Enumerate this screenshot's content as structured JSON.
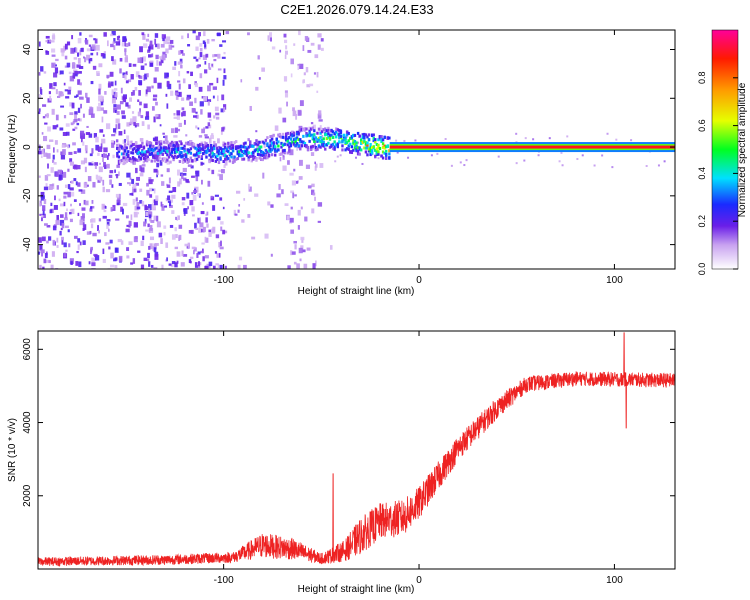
{
  "title": "C2E1.2026.079.14.24.E33",
  "colors": {
    "snr_line": "#ee2222",
    "axis": "#000000",
    "background": "#ffffff"
  },
  "chart_data": [
    {
      "type": "heatmap",
      "name": "spectrogram",
      "xlabel": "Height of straight line (km)",
      "ylabel": "Frequency (Hz)",
      "xlim": [
        -195,
        131
      ],
      "ylim": [
        -50,
        48
      ],
      "xticks": [
        -100,
        0,
        100
      ],
      "yticks": [
        -40,
        -20,
        0,
        20,
        40
      ],
      "colorbar": {
        "label": "Normalized spectral amplitude",
        "range": [
          0,
          1
        ],
        "ticks": [
          0.0,
          0.2,
          0.4,
          0.6,
          0.8
        ]
      },
      "features": {
        "noise_region_km": [
          -195,
          -45
        ],
        "drift_track": [
          {
            "x": -155,
            "freq": -2,
            "amp": 0.35
          },
          {
            "x": -130,
            "freq": -1,
            "amp": 0.38
          },
          {
            "x": -100,
            "freq": -2,
            "amp": 0.45
          },
          {
            "x": -80,
            "freq": 0,
            "amp": 0.48
          },
          {
            "x": -60,
            "freq": 4,
            "amp": 0.5
          },
          {
            "x": -45,
            "freq": 4,
            "amp": 0.6
          },
          {
            "x": -30,
            "freq": 2,
            "amp": 0.75
          },
          {
            "x": -15,
            "freq": 0,
            "amp": 0.85
          },
          {
            "x": 0,
            "freq": 0,
            "amp": 0.9
          },
          {
            "x": 131,
            "freq": 0,
            "amp": 0.9
          }
        ],
        "steady_carrier_freq": 0,
        "steady_start_km": -15
      }
    },
    {
      "type": "line",
      "name": "snr",
      "xlabel": "Height of straight line (km)",
      "ylabel": "SNR (10 * v/v)",
      "xlim": [
        -195,
        131
      ],
      "ylim": [
        0,
        6500
      ],
      "xticks": [
        -100,
        0,
        100
      ],
      "yticks": [
        2000,
        4000,
        6000
      ],
      "envelope": [
        {
          "x": -195,
          "mean": 200,
          "noise": 120
        },
        {
          "x": -130,
          "mean": 250,
          "noise": 140
        },
        {
          "x": -95,
          "mean": 320,
          "noise": 150
        },
        {
          "x": -80,
          "mean": 650,
          "noise": 350
        },
        {
          "x": -65,
          "mean": 550,
          "noise": 300
        },
        {
          "x": -50,
          "mean": 280,
          "noise": 150
        },
        {
          "x": -38,
          "mean": 500,
          "noise": 300
        },
        {
          "x": -30,
          "mean": 900,
          "noise": 500
        },
        {
          "x": -20,
          "mean": 1300,
          "noise": 500
        },
        {
          "x": -8,
          "mean": 1400,
          "noise": 500
        },
        {
          "x": 0,
          "mean": 1800,
          "noise": 450
        },
        {
          "x": 20,
          "mean": 3300,
          "noise": 350
        },
        {
          "x": 40,
          "mean": 4400,
          "noise": 300
        },
        {
          "x": 55,
          "mean": 5050,
          "noise": 220
        },
        {
          "x": 80,
          "mean": 5200,
          "noise": 200
        },
        {
          "x": 131,
          "mean": 5150,
          "noise": 200
        }
      ],
      "spikes": [
        {
          "x": -44,
          "y": 2600
        },
        {
          "x": 105,
          "y": 6450
        },
        {
          "x": 106,
          "y": 3850
        }
      ]
    }
  ]
}
